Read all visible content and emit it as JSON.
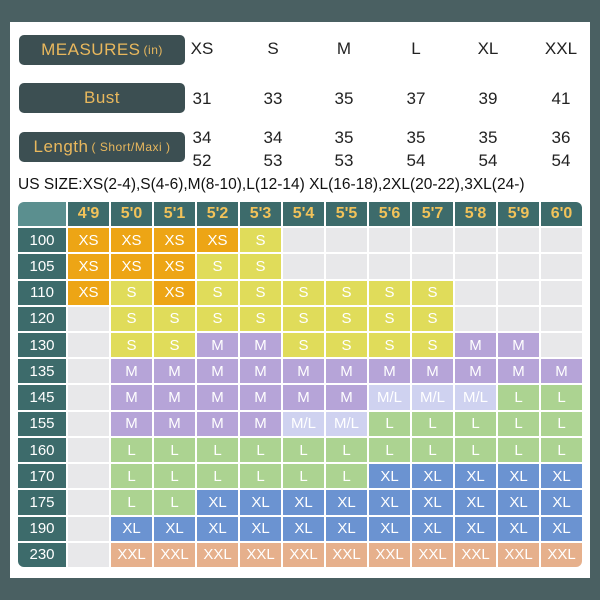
{
  "measures": {
    "header_label": "MEASURES",
    "header_unit": "(in)",
    "sizes": [
      "XS",
      "S",
      "M",
      "L",
      "XL",
      "XXL"
    ],
    "bust_label": "Bust",
    "bust": [
      "31",
      "33",
      "35",
      "37",
      "39",
      "41"
    ],
    "length_label": "Length",
    "length_unit": "( Short/Maxi )",
    "length_short": [
      "34",
      "34",
      "35",
      "35",
      "35",
      "36"
    ],
    "length_maxi": [
      "52",
      "53",
      "53",
      "54",
      "54",
      "54"
    ]
  },
  "us_size_line": "US SIZE:XS(2-4),S(4-6),M(8-10),L(12-14) XL(16-18),2XL(20-22),3XL(24-)",
  "grid": {
    "heights": [
      "4'9",
      "5'0",
      "5'1",
      "5'2",
      "5'3",
      "5'4",
      "5'5",
      "5'6",
      "5'7",
      "5'8",
      "5'9",
      "6'0"
    ],
    "rows": [
      {
        "weight": "100",
        "cells": [
          "XS",
          "XS",
          "XS",
          "XS",
          "S",
          "",
          "",
          "",
          "",
          "",
          "",
          ""
        ]
      },
      {
        "weight": "105",
        "cells": [
          "XS",
          "XS",
          "XS",
          "S",
          "S",
          "",
          "",
          "",
          "",
          "",
          "",
          ""
        ]
      },
      {
        "weight": "110",
        "cells": [
          "XS",
          "S",
          "XS",
          "S",
          "S",
          "S",
          "S",
          "S",
          "S",
          "",
          "",
          ""
        ]
      },
      {
        "weight": "120",
        "cells": [
          "",
          "S",
          "S",
          "S",
          "S",
          "S",
          "S",
          "S",
          "S",
          "",
          "",
          ""
        ]
      },
      {
        "weight": "130",
        "cells": [
          "",
          "S",
          "S",
          "M",
          "M",
          "S",
          "S",
          "S",
          "S",
          "M",
          "M",
          ""
        ]
      },
      {
        "weight": "135",
        "cells": [
          "",
          "M",
          "M",
          "M",
          "M",
          "M",
          "M",
          "M",
          "M",
          "M",
          "M",
          "M"
        ]
      },
      {
        "weight": "145",
        "cells": [
          "",
          "M",
          "M",
          "M",
          "M",
          "M",
          "M",
          "M/L",
          "M/L",
          "M/L",
          "L",
          "L"
        ]
      },
      {
        "weight": "155",
        "cells": [
          "",
          "M",
          "M",
          "M",
          "M",
          "M/L",
          "M/L",
          "L",
          "L",
          "L",
          "L",
          "L"
        ]
      },
      {
        "weight": "160",
        "cells": [
          "",
          "L",
          "L",
          "L",
          "L",
          "L",
          "L",
          "L",
          "L",
          "L",
          "L",
          "L"
        ]
      },
      {
        "weight": "170",
        "cells": [
          "",
          "L",
          "L",
          "L",
          "L",
          "L",
          "L",
          "XL",
          "XL",
          "XL",
          "XL",
          "XL"
        ]
      },
      {
        "weight": "175",
        "cells": [
          "",
          "L",
          "L",
          "XL",
          "XL",
          "XL",
          "XL",
          "XL",
          "XL",
          "XL",
          "XL",
          "XL"
        ]
      },
      {
        "weight": "190",
        "cells": [
          "",
          "XL",
          "XL",
          "XL",
          "XL",
          "XL",
          "XL",
          "XL",
          "XL",
          "XL",
          "XL",
          "XL"
        ]
      },
      {
        "weight": "230",
        "cells": [
          "",
          "XXL",
          "XXL",
          "XXL",
          "XXL",
          "XXL",
          "XXL",
          "XXL",
          "XXL",
          "XXL",
          "XXL",
          "XXL"
        ]
      }
    ]
  },
  "colors": {
    "frame": "#4a6062",
    "label_bg": "#3c4f52",
    "label_text": "#e9b85d",
    "header_bg": "#3d6b6b",
    "header_text": "#f2c35a",
    "XS": "#eda515",
    "S": "#e0dc5a",
    "M": "#b6a4d8",
    "M/L": "#cfd2f0",
    "L": "#acd391",
    "XL": "#6b93d1",
    "XXL": "#e6b08c",
    "empty": "#e8e8ea"
  }
}
